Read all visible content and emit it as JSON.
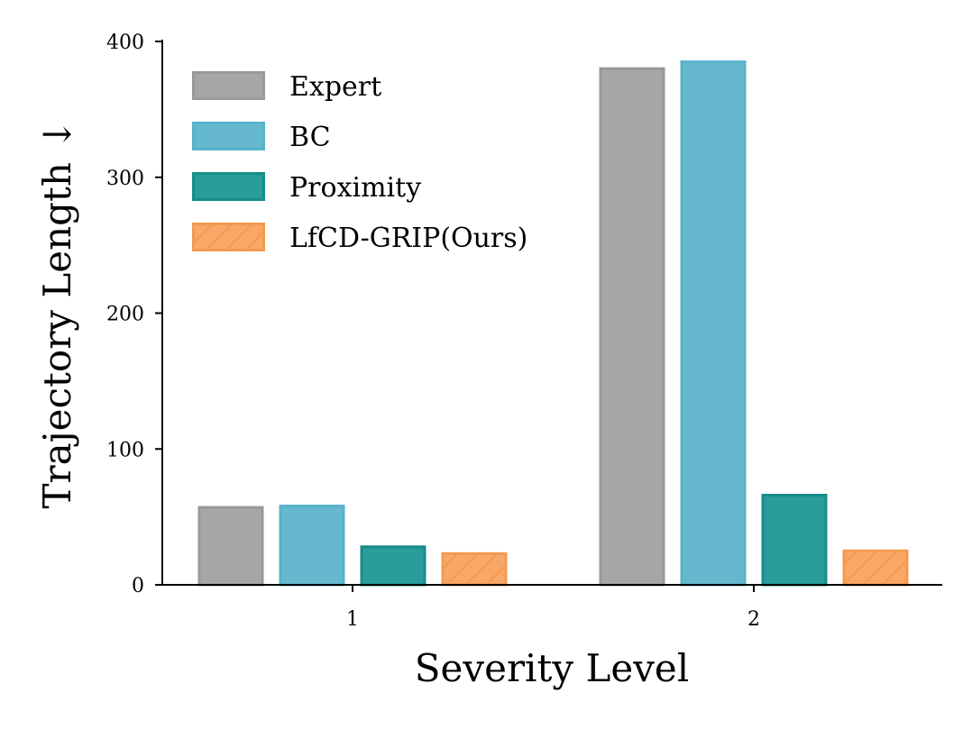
{
  "chart_data": {
    "type": "bar",
    "xlabel": "Severity Level",
    "ylabel": "Trajectory Length ↓",
    "ylim": [
      0,
      400
    ],
    "yticks": [
      0,
      100,
      200,
      300,
      400
    ],
    "categories": [
      "1",
      "2"
    ],
    "series": [
      {
        "name": "Expert",
        "values": [
          58,
          381
        ],
        "color": "#a6a6a6",
        "edge": "#999999",
        "hatch": false
      },
      {
        "name": "BC",
        "values": [
          59,
          386
        ],
        "color": "#66b8cf",
        "edge": "#58b2cb",
        "hatch": false
      },
      {
        "name": "Proximity",
        "values": [
          29,
          67
        ],
        "color": "#2a9d9b",
        "edge": "#168d8b",
        "hatch": false
      },
      {
        "name": "LfCD-GRIP(Ours)",
        "values": [
          24,
          26
        ],
        "color": "#f9a766",
        "edge": "#f39a50",
        "hatch": true
      }
    ],
    "legend_position": "top-left",
    "grid": false
  }
}
